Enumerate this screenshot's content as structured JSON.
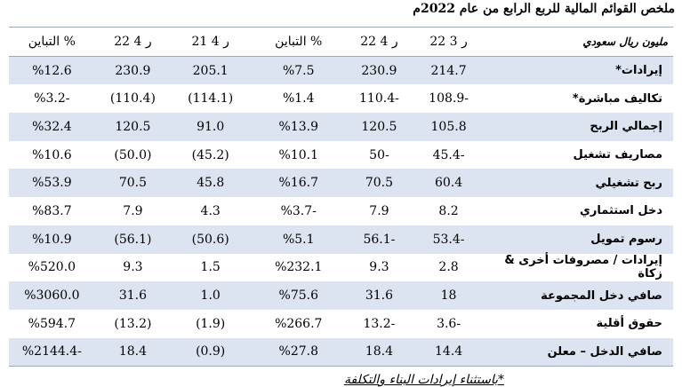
{
  "header": {
    "title": "ملخص القوائم المالية للربع الرابع من عام 2022م"
  },
  "table": {
    "columns": [
      "مليون ريال سعودي",
      "ر 3 22",
      "ر 4 22",
      "التباين %",
      "ر 4 21",
      "ر 4 22",
      "التباين %"
    ],
    "rows": [
      [
        "إيرادات*",
        "214.7",
        "230.9",
        "%7.5",
        "205.1",
        "230.9",
        "%12.6"
      ],
      [
        "تكاليف مباشرة*",
        "108.9-",
        "110.4-",
        "%1.4",
        "(114.1)",
        "(110.4)",
        "%3.2-"
      ],
      [
        "إجمالي الربح",
        "105.8",
        "120.5",
        "%13.9",
        "91.0",
        "120.5",
        "%32.4"
      ],
      [
        "مصاريف تشغيل",
        "45.4-",
        "50-",
        "%10.1",
        "(45.2)",
        "(50.0)",
        "%10.6"
      ],
      [
        "ربح تشغيلي",
        "60.4",
        "70.5",
        "%16.7",
        "45.8",
        "70.5",
        "%53.9"
      ],
      [
        "دخل استثماري",
        "8.2",
        "7.9",
        "%3.7-",
        "4.3",
        "7.9",
        "%83.7"
      ],
      [
        "رسوم تمويل",
        "53.4-",
        "56.1-",
        "%5.1",
        "(50.6)",
        "(56.1)",
        "%10.9"
      ],
      [
        "إيرادات / مصروفات أخرى & زكاة",
        "2.8",
        "9.3",
        "%232.1",
        "1.5",
        "9.3",
        "%520.0"
      ],
      [
        "صافي دخل المجموعة",
        "18",
        "31.6",
        "%75.6",
        "1.0",
        "31.6",
        "%3060.0"
      ],
      [
        "حقوق أقلية",
        "3.6-",
        "13.2-",
        "%266.7",
        "(1.9)",
        "(13.2)",
        "%594.7"
      ],
      [
        "صافي الدخل – معلن",
        "14.4",
        "18.4",
        "%27.8",
        "(0.9)",
        "18.4",
        "%2144.4-"
      ]
    ]
  },
  "footnote": "*باستثناء إيرادات البناء والتكلفة"
}
